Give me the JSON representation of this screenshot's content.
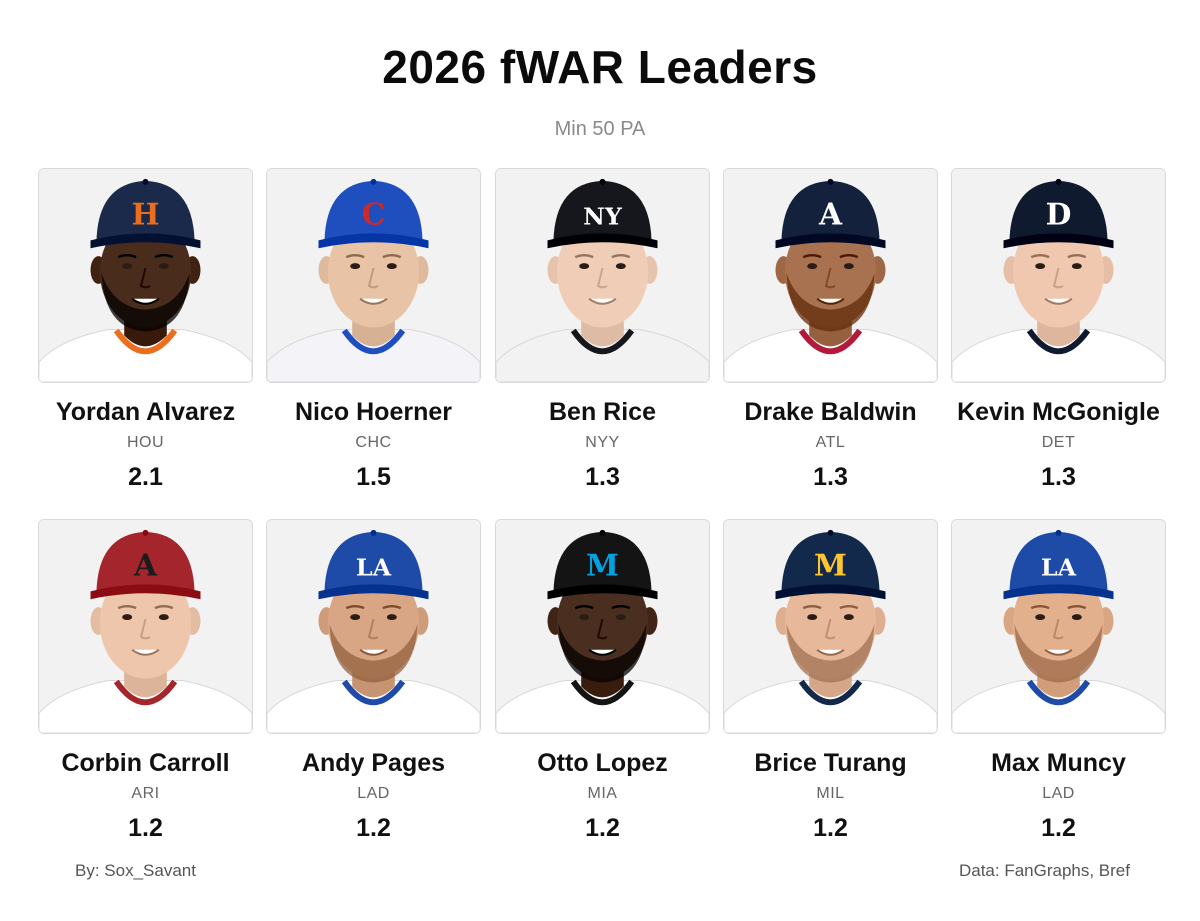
{
  "header": {
    "title": "2026 fWAR Leaders",
    "subtitle": "Min 50 PA"
  },
  "players": [
    {
      "name": "Yordan Alvarez",
      "team": "HOU",
      "war": "2.1",
      "cap_color": "#1b2a4a",
      "logo_color": "#eb6e1f",
      "logo_text": "H",
      "skin": "#4a2c1c",
      "jersey": "#ffffff",
      "trim": "#eb6e1f",
      "beard": true
    },
    {
      "name": "Nico Hoerner",
      "team": "CHC",
      "war": "1.5",
      "cap_color": "#1f4fbf",
      "logo_color": "#cc2a2a",
      "logo_text": "C",
      "skin": "#e9c3a6",
      "jersey": "#f4f4f8",
      "trim": "#1f4fbf",
      "beard": false
    },
    {
      "name": "Ben Rice",
      "team": "NYY",
      "war": "1.3",
      "cap_color": "#16171d",
      "logo_color": "#ffffff",
      "logo_text": "NY",
      "skin": "#f0cdb6",
      "jersey": "#f2f2f2",
      "trim": "#16171d",
      "beard": false
    },
    {
      "name": "Drake Baldwin",
      "team": "ATL",
      "war": "1.3",
      "cap_color": "#14213d",
      "logo_color": "#ffffff",
      "logo_text": "A",
      "skin": "#a8714f",
      "jersey": "#ffffff",
      "trim": "#b3193a",
      "beard": true
    },
    {
      "name": "Kevin McGonigle",
      "team": "DET",
      "war": "1.3",
      "cap_color": "#0f1a2e",
      "logo_color": "#ffffff",
      "logo_text": "D",
      "skin": "#f0c8b0",
      "jersey": "#ffffff",
      "trim": "#0f1a2e",
      "beard": false
    },
    {
      "name": "Corbin Carroll",
      "team": "ARI",
      "war": "1.2",
      "cap_color": "#a4262c",
      "logo_color": "#1c1c1c",
      "logo_text": "A",
      "skin": "#eec6ab",
      "jersey": "#ffffff",
      "trim": "#a4262c",
      "beard": false
    },
    {
      "name": "Andy Pages",
      "team": "LAD",
      "war": "1.2",
      "cap_color": "#1e4aa8",
      "logo_color": "#ffffff",
      "logo_text": "LA",
      "skin": "#d9a685",
      "jersey": "#ffffff",
      "trim": "#1e4aa8",
      "beard": true
    },
    {
      "name": "Otto Lopez",
      "team": "MIA",
      "war": "1.2",
      "cap_color": "#141414",
      "logo_color": "#00a3e0",
      "logo_text": "M",
      "skin": "#4a2e1f",
      "jersey": "#ffffff",
      "trim": "#141414",
      "beard": true
    },
    {
      "name": "Brice Turang",
      "team": "MIL",
      "war": "1.2",
      "cap_color": "#13294b",
      "logo_color": "#ffc52f",
      "logo_text": "M",
      "skin": "#e8b89a",
      "jersey": "#ffffff",
      "trim": "#13294b",
      "beard": true
    },
    {
      "name": "Max Muncy",
      "team": "LAD",
      "war": "1.2",
      "cap_color": "#1e4aa8",
      "logo_color": "#ffffff",
      "logo_text": "LA",
      "skin": "#e3b08e",
      "jersey": "#ffffff",
      "trim": "#1e4aa8",
      "beard": true
    }
  ],
  "footer": {
    "credit_left": "By: Sox_Savant",
    "credit_right": "Data: FanGraphs, Bref"
  }
}
